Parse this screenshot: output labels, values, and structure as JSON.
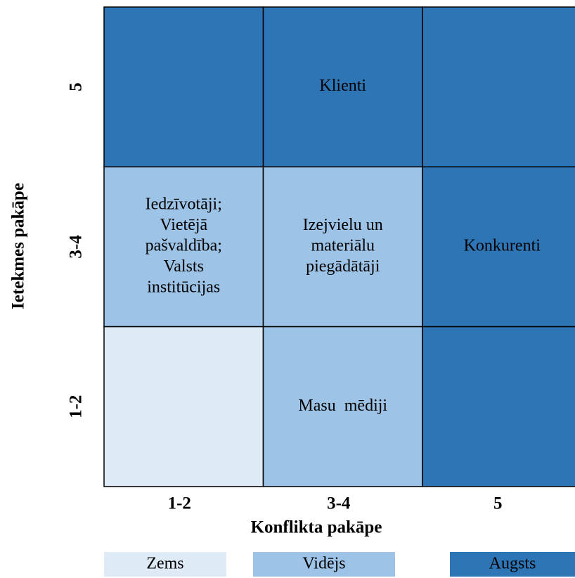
{
  "y_axis": {
    "title": "Ietekmes pakāpe",
    "labels": [
      "5",
      "3-4",
      "1-2"
    ]
  },
  "x_axis": {
    "title": "Konflikta pakāpe",
    "labels": [
      "1-2",
      "3-4",
      "5"
    ]
  },
  "cells": [
    [
      {
        "color": "#2e75b6"
      },
      {
        "color": "#2e75b6",
        "lines": [
          "Klienti"
        ]
      },
      {
        "color": "#2e75b6"
      }
    ],
    [
      {
        "color": "#9dc3e6",
        "lines": [
          "Iedzīvotāji;",
          "Vietējā",
          "pašvaldība;",
          "Valsts",
          "institūcijas"
        ]
      },
      {
        "color": "#9dc3e6",
        "lines": [
          "Izejvielu un",
          "materiālu",
          "piegādātāji"
        ]
      },
      {
        "color": "#2e75b6",
        "lines": [
          "Konkurenti"
        ]
      }
    ],
    [
      {
        "color": "#deebf7"
      },
      {
        "color": "#9dc3e6",
        "lines": [
          "Masu  mēdiji"
        ]
      },
      {
        "color": "#2e75b6"
      }
    ]
  ],
  "legend": [
    {
      "label": "Zems",
      "color": "#deebf7"
    },
    {
      "label": "Vidējs",
      "color": "#9dc3e6"
    },
    {
      "label": "Augsts",
      "color": "#2e75b6"
    }
  ]
}
